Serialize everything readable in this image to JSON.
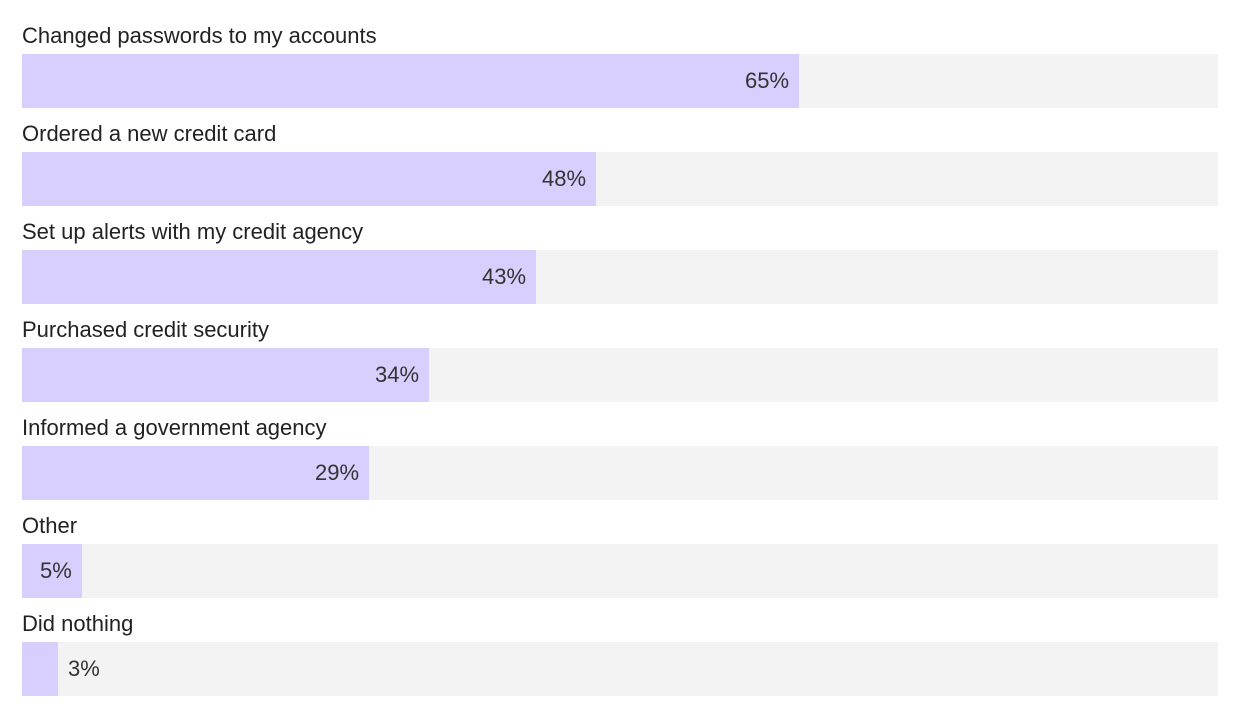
{
  "chart_data": {
    "type": "bar",
    "orientation": "horizontal",
    "categories": [
      "Changed passwords to my accounts",
      "Ordered a new credit card",
      "Set up alerts with my credit agency",
      "Purchased credit security",
      "Informed a government agency",
      "Other",
      "Did nothing"
    ],
    "values": [
      65,
      48,
      43,
      34,
      29,
      5,
      3
    ],
    "value_labels": [
      "65%",
      "48%",
      "43%",
      "34%",
      "29%",
      "5%",
      "3%"
    ],
    "xlim": [
      0,
      100
    ],
    "unit": "%",
    "colors": {
      "bar": "#d9cffe",
      "track": "#f3f3f3",
      "label": "#222222",
      "value": "#333333"
    }
  }
}
